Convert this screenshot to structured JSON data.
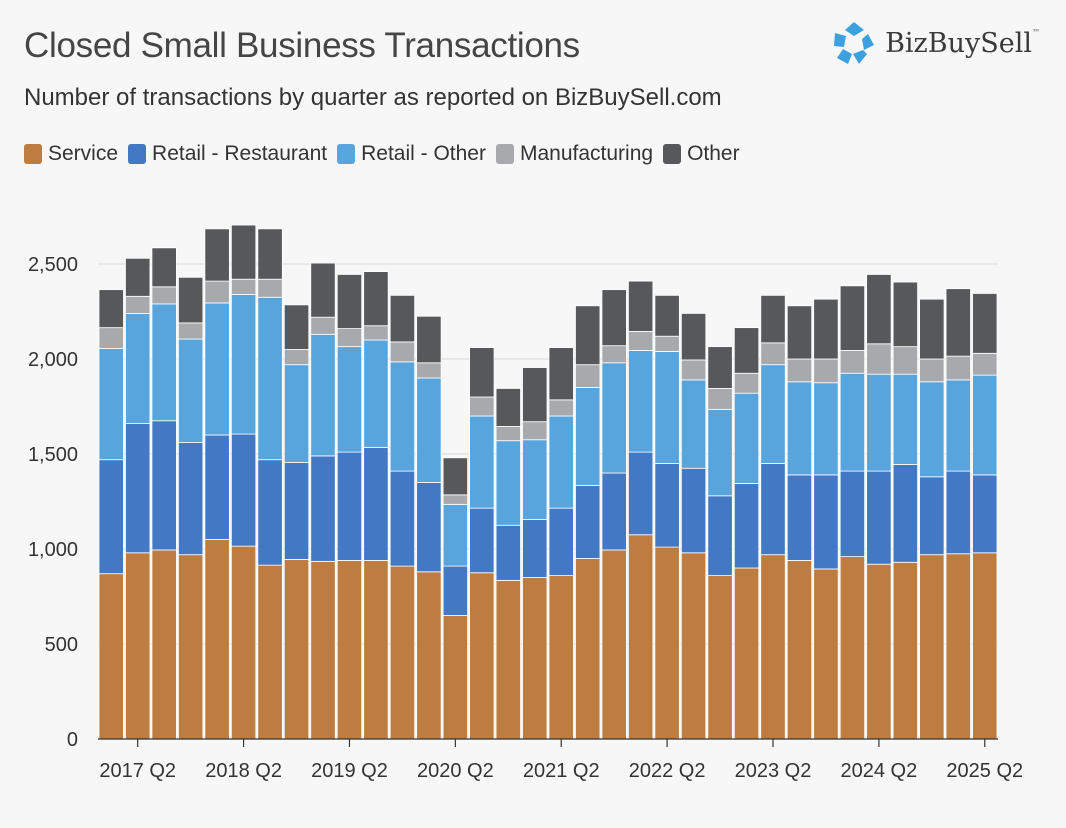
{
  "header": {
    "title": "Closed Small Business Transactions",
    "subtitle": "Number of transactions by quarter as reported on BizBuySell.com"
  },
  "logo": {
    "text": "BizBuySell",
    "tm": "™"
  },
  "chart_data": {
    "type": "bar",
    "stacked": true,
    "title": "Closed Small Business Transactions",
    "subtitle": "Number of transactions by quarter as reported on BizBuySell.com",
    "xlabel": "",
    "ylabel": "",
    "ylim": [
      0,
      2750
    ],
    "yticks": [
      0,
      500,
      1000,
      1500,
      2000,
      2500
    ],
    "ytick_labels": [
      "0",
      "500",
      "1,000",
      "1,500",
      "2,000",
      "2,500"
    ],
    "grid": true,
    "legend_position": "top-left",
    "categories": [
      "2017 Q1",
      "2017 Q2",
      "2017 Q3",
      "2017 Q4",
      "2018 Q1",
      "2018 Q2",
      "2018 Q3",
      "2018 Q4",
      "2019 Q1",
      "2019 Q2",
      "2019 Q3",
      "2019 Q4",
      "2020 Q1",
      "2020 Q2",
      "2020 Q3",
      "2020 Q4",
      "2021 Q1",
      "2021 Q2",
      "2021 Q3",
      "2021 Q4",
      "2022 Q1",
      "2022 Q2",
      "2022 Q3",
      "2022 Q4",
      "2023 Q1",
      "2023 Q2",
      "2023 Q3",
      "2023 Q4",
      "2024 Q1",
      "2024 Q2",
      "2024 Q3",
      "2024 Q4",
      "2025 Q1",
      "2025 Q2"
    ],
    "x_tick_labels": [
      "2017 Q2",
      "2018 Q2",
      "2019 Q2",
      "2020 Q2",
      "2021 Q2",
      "2022 Q2",
      "2023 Q2",
      "2024 Q2",
      "2025 Q2"
    ],
    "series": [
      {
        "name": "Service",
        "color": "#bd7c40",
        "values": [
          870,
          980,
          995,
          970,
          1050,
          1015,
          915,
          945,
          935,
          940,
          940,
          910,
          880,
          650,
          875,
          835,
          850,
          860,
          950,
          995,
          1075,
          1010,
          980,
          860,
          900,
          970,
          940,
          895,
          960,
          920,
          930,
          970,
          975,
          980
        ]
      },
      {
        "name": "Retail - Restaurant",
        "color": "#4278c4",
        "values": [
          600,
          680,
          680,
          590,
          550,
          590,
          555,
          510,
          555,
          570,
          595,
          500,
          470,
          260,
          340,
          290,
          305,
          355,
          385,
          405,
          435,
          440,
          445,
          420,
          445,
          480,
          450,
          495,
          450,
          490,
          515,
          410,
          435,
          410
        ]
      },
      {
        "name": "Retail - Other",
        "color": "#58a5de",
        "values": [
          585,
          580,
          615,
          545,
          695,
          735,
          855,
          515,
          640,
          555,
          565,
          575,
          550,
          325,
          485,
          445,
          420,
          485,
          515,
          580,
          535,
          590,
          465,
          455,
          475,
          520,
          490,
          485,
          515,
          510,
          475,
          500,
          480,
          525
        ]
      },
      {
        "name": "Manufacturing",
        "color": "#a8a9ac",
        "values": [
          110,
          90,
          90,
          85,
          115,
          80,
          95,
          80,
          90,
          95,
          75,
          105,
          80,
          50,
          100,
          75,
          95,
          85,
          120,
          90,
          100,
          80,
          105,
          110,
          105,
          115,
          120,
          125,
          120,
          160,
          145,
          120,
          125,
          115
        ]
      },
      {
        "name": "Other",
        "color": "#57585a",
        "values": [
          200,
          200,
          205,
          240,
          275,
          285,
          265,
          235,
          285,
          285,
          285,
          245,
          245,
          195,
          260,
          200,
          285,
          275,
          310,
          295,
          265,
          215,
          245,
          220,
          240,
          250,
          280,
          315,
          340,
          365,
          340,
          315,
          355,
          315
        ]
      }
    ]
  }
}
